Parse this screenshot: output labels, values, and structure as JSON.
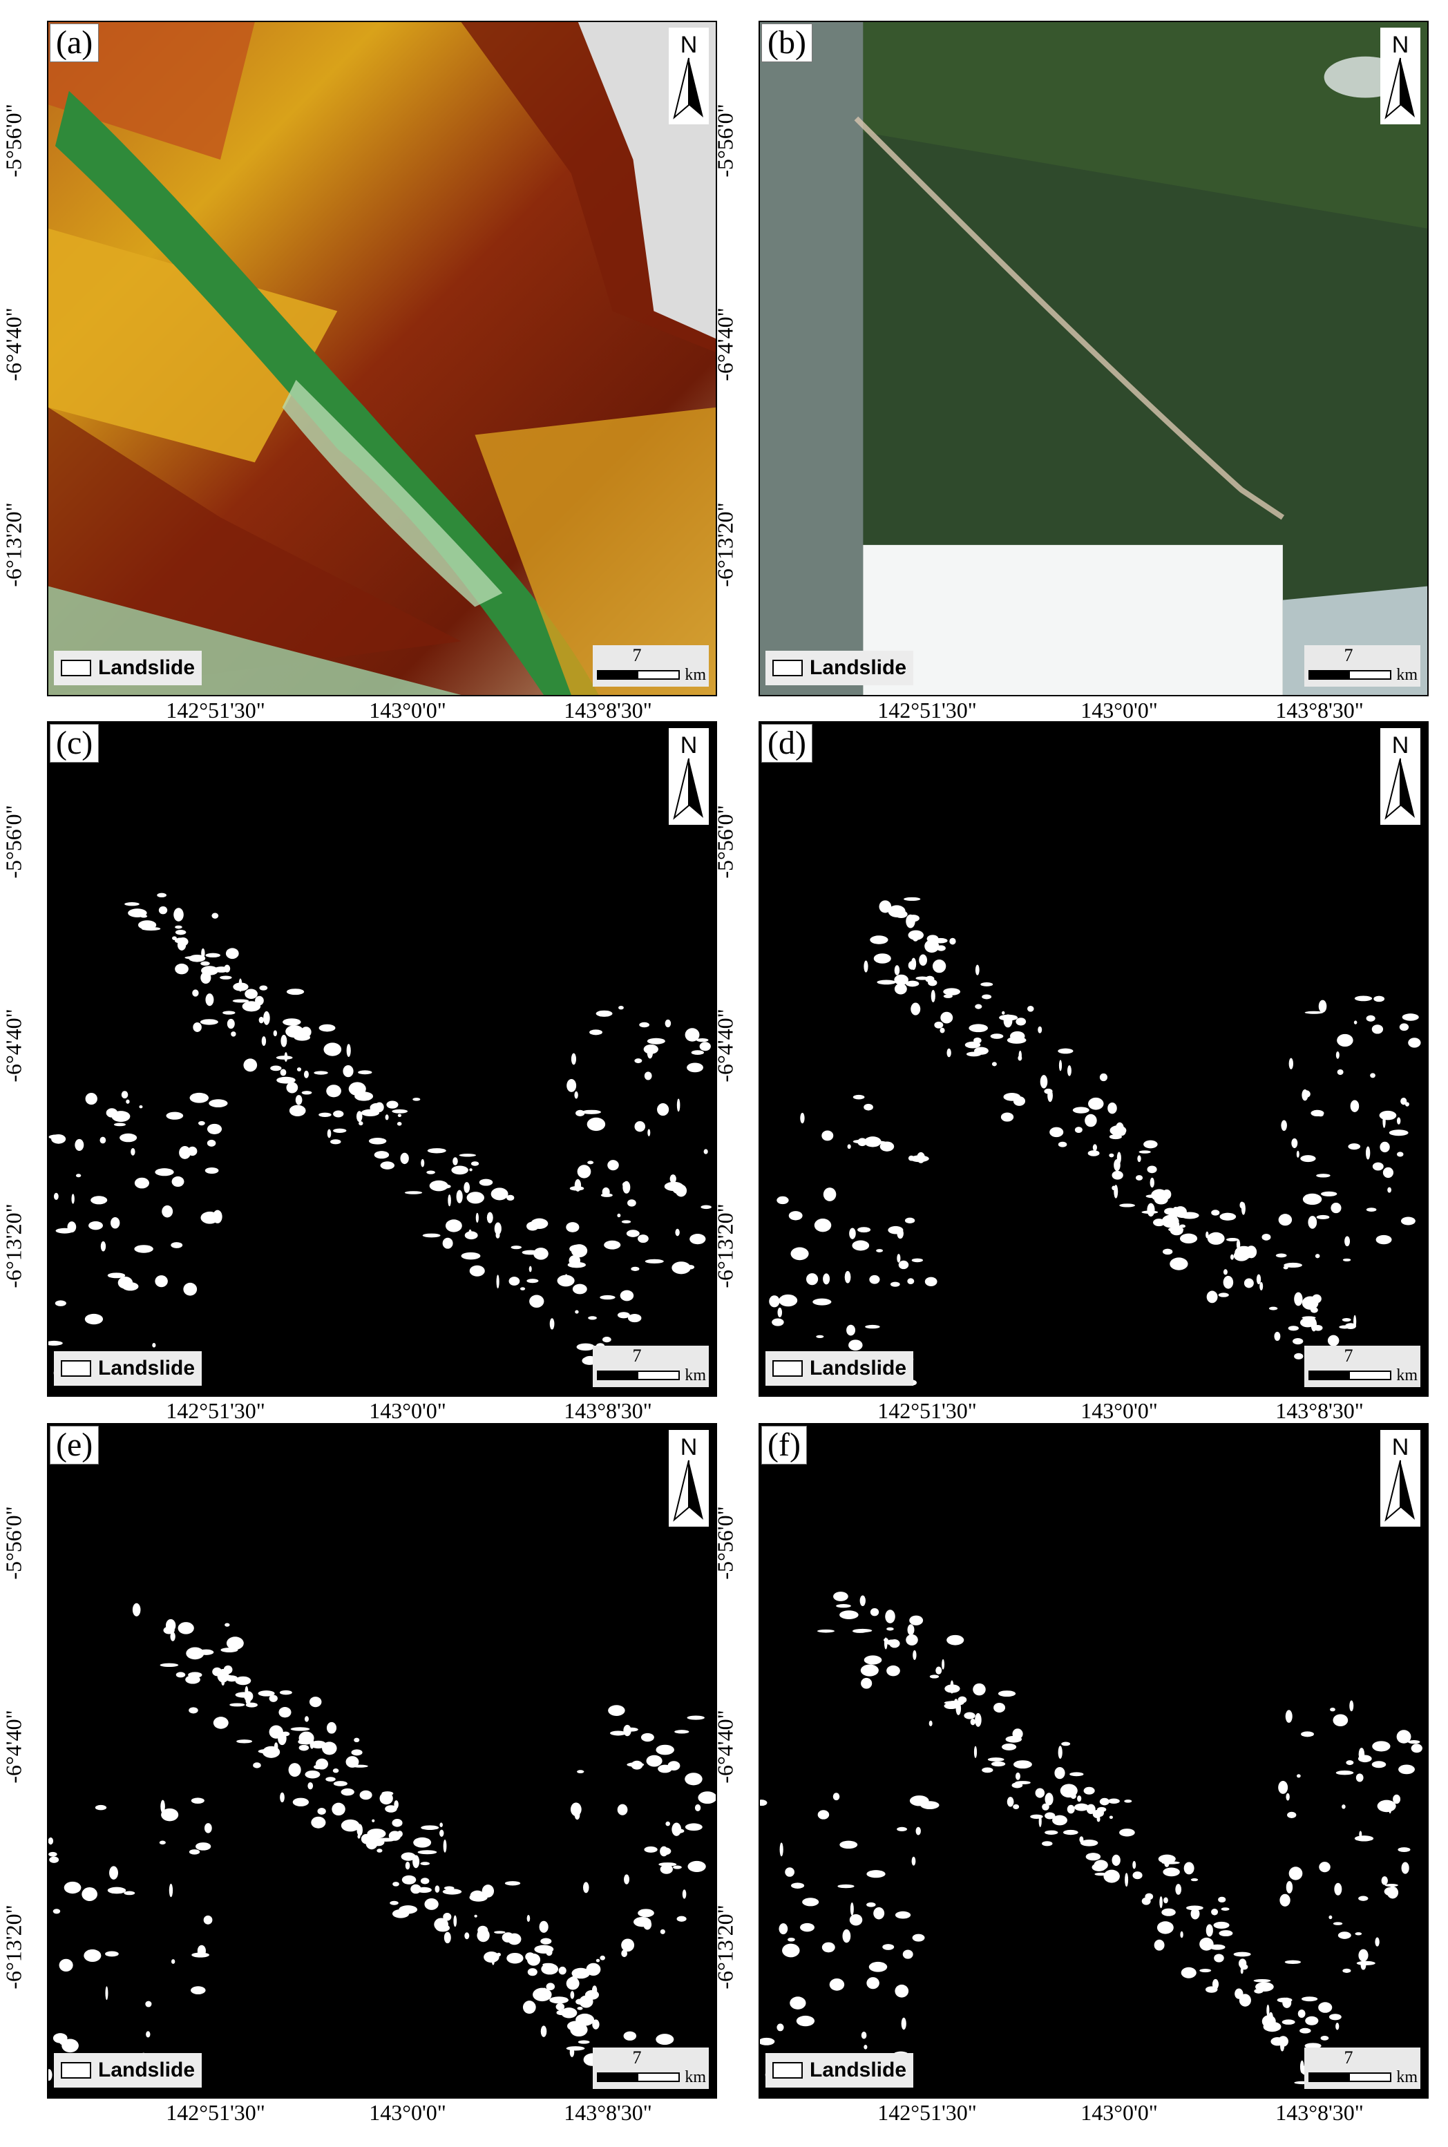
{
  "panels": [
    {
      "label": "(a)",
      "type": "dem"
    },
    {
      "label": "(b)",
      "type": "satellite"
    },
    {
      "label": "(c)",
      "type": "binary"
    },
    {
      "label": "(d)",
      "type": "binary"
    },
    {
      "label": "(e)",
      "type": "binary"
    },
    {
      "label": "(f)",
      "type": "binary"
    }
  ],
  "legend": {
    "label": "Landslide"
  },
  "scale": {
    "value": "7",
    "unit": "km"
  },
  "north_label": "N",
  "lat_ticks": [
    "-5°56'0\"",
    "-6°4'40\"",
    "-6°13'20\""
  ],
  "lon_ticks": [
    "142°51'30\"",
    "143°0'0\"",
    "143°8'30\""
  ],
  "colors": {
    "frame": "#000000",
    "dem_low": "#2f8a3a",
    "dem_mid": "#d9a21a",
    "dem_high": "#7a1e08",
    "dem_peak": "#e8e8e8",
    "satellite": "#2f4a2c",
    "landslide": "#ffffff"
  }
}
